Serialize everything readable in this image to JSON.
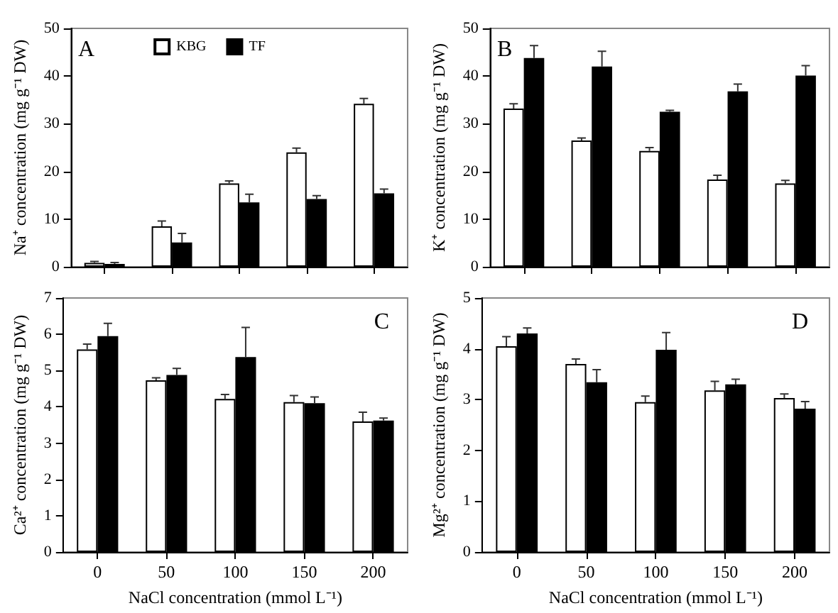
{
  "chart_data": [
    {
      "type": "bar",
      "title": "A",
      "ylabel": "Na⁺ concentration (mg g⁻¹ DW)",
      "categories": [
        "0",
        "50",
        "100",
        "150",
        "200"
      ],
      "ylim": [
        0,
        50
      ],
      "yticks": [
        0,
        10,
        20,
        30,
        40,
        50
      ],
      "grid": false,
      "legend": "top",
      "tick_labels": "y",
      "series": [
        {
          "name": "KBG",
          "color": "#ffffff",
          "values": [
            0.8,
            8.5,
            17.5,
            24,
            34.2
          ],
          "errors": [
            [
              0.8,
              1.1
            ],
            [
              8.5,
              9.6
            ],
            [
              17.5,
              18
            ],
            [
              24,
              24.9
            ],
            [
              34.2,
              35.3
            ]
          ]
        },
        {
          "name": "TF",
          "color": "#000000",
          "values": [
            0.6,
            5.1,
            13.5,
            14.2,
            15.4
          ],
          "errors": [
            [
              0.6,
              0.9
            ],
            [
              5.1,
              7
            ],
            [
              13.5,
              15.2
            ],
            [
              14.2,
              14.9
            ],
            [
              15.4,
              16.3
            ]
          ]
        }
      ]
    },
    {
      "type": "bar",
      "title": "B",
      "ylabel": "K⁺ concentration (mg g⁻¹ DW)",
      "categories": [
        "0",
        "50",
        "100",
        "150",
        "200"
      ],
      "ylim": [
        0,
        50
      ],
      "yticks": [
        0,
        10,
        20,
        30,
        40,
        50
      ],
      "grid": false,
      "tick_labels": "y",
      "series": [
        {
          "color": "#ffffff",
          "values": [
            33.2,
            26.5,
            24.3,
            18.3,
            17.5
          ],
          "errors": [
            [
              33.2,
              34.2
            ],
            [
              26.5,
              27
            ],
            [
              24.3,
              25
            ],
            [
              18.3,
              19.2
            ],
            [
              17.5,
              18.1
            ]
          ]
        },
        {
          "color": "#000000",
          "values": [
            43.8,
            42,
            32.5,
            36.8,
            40.1
          ],
          "errors": [
            [
              43.8,
              46.4
            ],
            [
              42,
              45.2
            ],
            [
              32.5,
              32.8
            ],
            [
              36.8,
              38.3
            ],
            [
              40.1,
              42.2
            ]
          ]
        }
      ]
    },
    {
      "type": "bar",
      "title": "C",
      "ylabel": "Ca²⁺ concentration (mg g⁻¹ DW)",
      "xlabel": "NaCl concentration (mmol L⁻¹)",
      "categories": [
        "0",
        "50",
        "100",
        "150",
        "200"
      ],
      "ylim": [
        0,
        7
      ],
      "yticks": [
        0,
        1,
        2,
        3,
        4,
        5,
        6,
        7
      ],
      "grid": false,
      "series": [
        {
          "color": "#ffffff",
          "values": [
            5.58,
            4.73,
            4.22,
            4.13,
            3.6
          ],
          "errors": [
            [
              5.58,
              5.73
            ],
            [
              4.73,
              4.8
            ],
            [
              4.22,
              4.34
            ],
            [
              4.13,
              4.31
            ],
            [
              3.6,
              3.85
            ]
          ]
        },
        {
          "color": "#000000",
          "values": [
            5.95,
            4.88,
            5.37,
            4.1,
            3.62
          ],
          "errors": [
            [
              5.95,
              6.3
            ],
            [
              4.88,
              5.06
            ],
            [
              5.37,
              6.19
            ],
            [
              4.1,
              4.27
            ],
            [
              3.62,
              3.69
            ]
          ]
        }
      ]
    },
    {
      "type": "bar",
      "title": "D",
      "ylabel": "Mg²⁺ concentration (mg g⁻¹ DW)",
      "xlabel": "NaCl concentration (mmol L⁻¹)",
      "categories": [
        "0",
        "50",
        "100",
        "150",
        "200"
      ],
      "ylim": [
        0,
        5
      ],
      "yticks": [
        0,
        1,
        2,
        3,
        4,
        5
      ],
      "grid": false,
      "series": [
        {
          "color": "#ffffff",
          "values": [
            4.05,
            3.7,
            2.95,
            3.18,
            3.03
          ],
          "errors": [
            [
              4.05,
              4.24
            ],
            [
              3.7,
              3.8
            ],
            [
              2.95,
              3.07
            ],
            [
              3.18,
              3.36
            ],
            [
              3.03,
              3.11
            ]
          ]
        },
        {
          "color": "#000000",
          "values": [
            4.3,
            3.34,
            3.98,
            3.3,
            2.82
          ],
          "errors": [
            [
              4.3,
              4.41
            ],
            [
              3.34,
              3.59
            ],
            [
              3.98,
              4.32
            ],
            [
              3.3,
              3.4
            ],
            [
              2.82,
              2.96
            ]
          ]
        }
      ]
    }
  ]
}
